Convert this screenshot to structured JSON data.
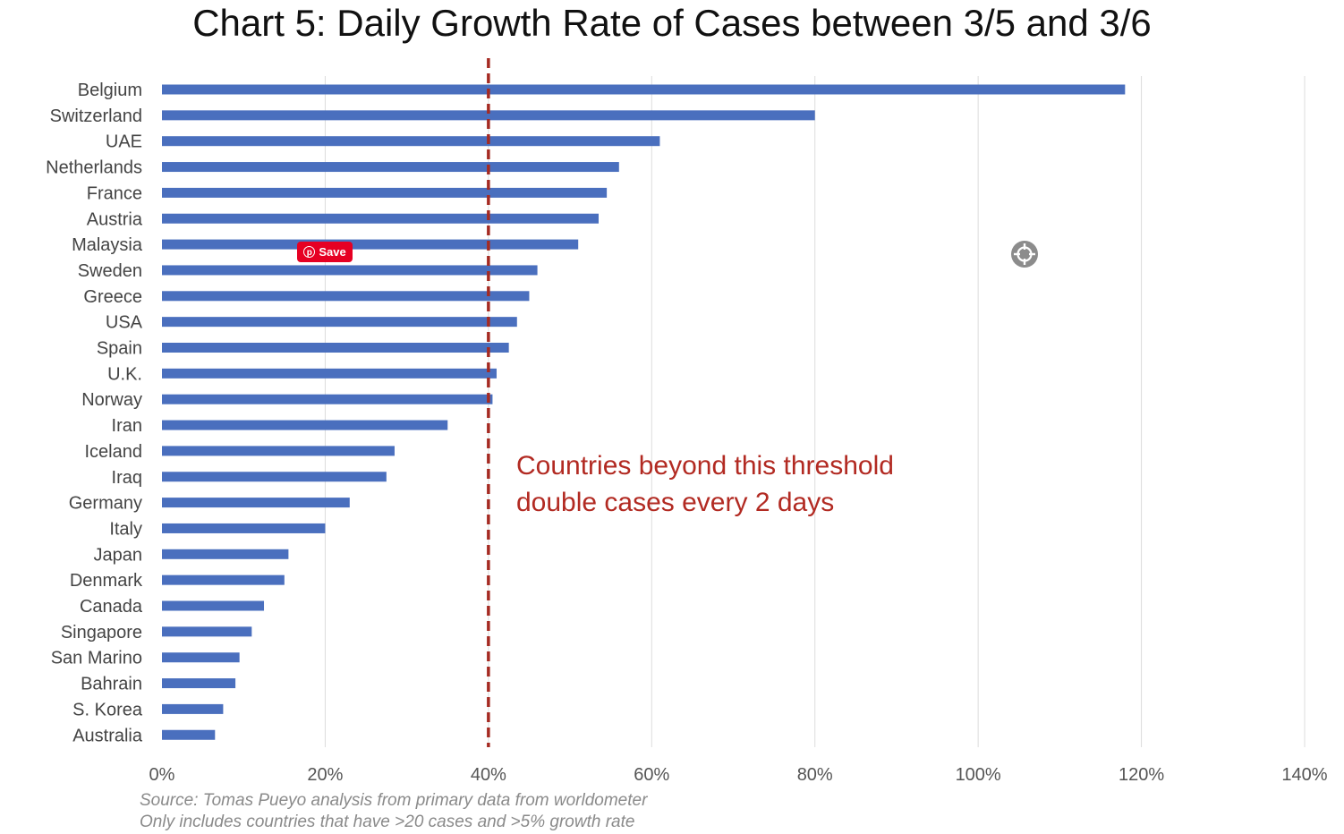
{
  "chart_data": {
    "type": "bar",
    "orientation": "horizontal",
    "title": "Chart 5: Daily Growth Rate of Cases between 3/5 and 3/6",
    "categories": [
      "Belgium",
      "Switzerland",
      "UAE",
      "Netherlands",
      "France",
      "Austria",
      "Malaysia",
      "Sweden",
      "Greece",
      "USA",
      "Spain",
      "U.K.",
      "Norway",
      "Iran",
      "Iceland",
      "Iraq",
      "Germany",
      "Italy",
      "Japan",
      "Denmark",
      "Canada",
      "Singapore",
      "San Marino",
      "Bahrain",
      "S. Korea",
      "Australia"
    ],
    "values": [
      118,
      80,
      61,
      56,
      54.5,
      53.5,
      51,
      46,
      45,
      43.5,
      42.5,
      41,
      40.5,
      35,
      28.5,
      27.5,
      23,
      20,
      15.5,
      15,
      12.5,
      11,
      9.5,
      9,
      7.5,
      6.5
    ],
    "xlim": [
      0,
      140
    ],
    "xticks": [
      "0%",
      "20%",
      "40%",
      "60%",
      "80%",
      "100%",
      "120%",
      "140%"
    ],
    "grid": "vertical",
    "bar_color": "#4a6fbe",
    "threshold": {
      "value": 40,
      "color": "#a52a22",
      "style": "dashed"
    },
    "annotation": [
      "Countries beyond this threshold",
      "double cases every 2 days"
    ],
    "annotation_color": "#b22a22",
    "source": [
      "Source: Tomas Pueyo analysis from primary data from worldometer",
      "Only includes countries that have >20 cases and >5% growth rate"
    ]
  },
  "overlay": {
    "pin_save_label": "Save",
    "pin_logo": "p",
    "pin_color": "#e60023",
    "target_icon": "crosshair-icon"
  }
}
